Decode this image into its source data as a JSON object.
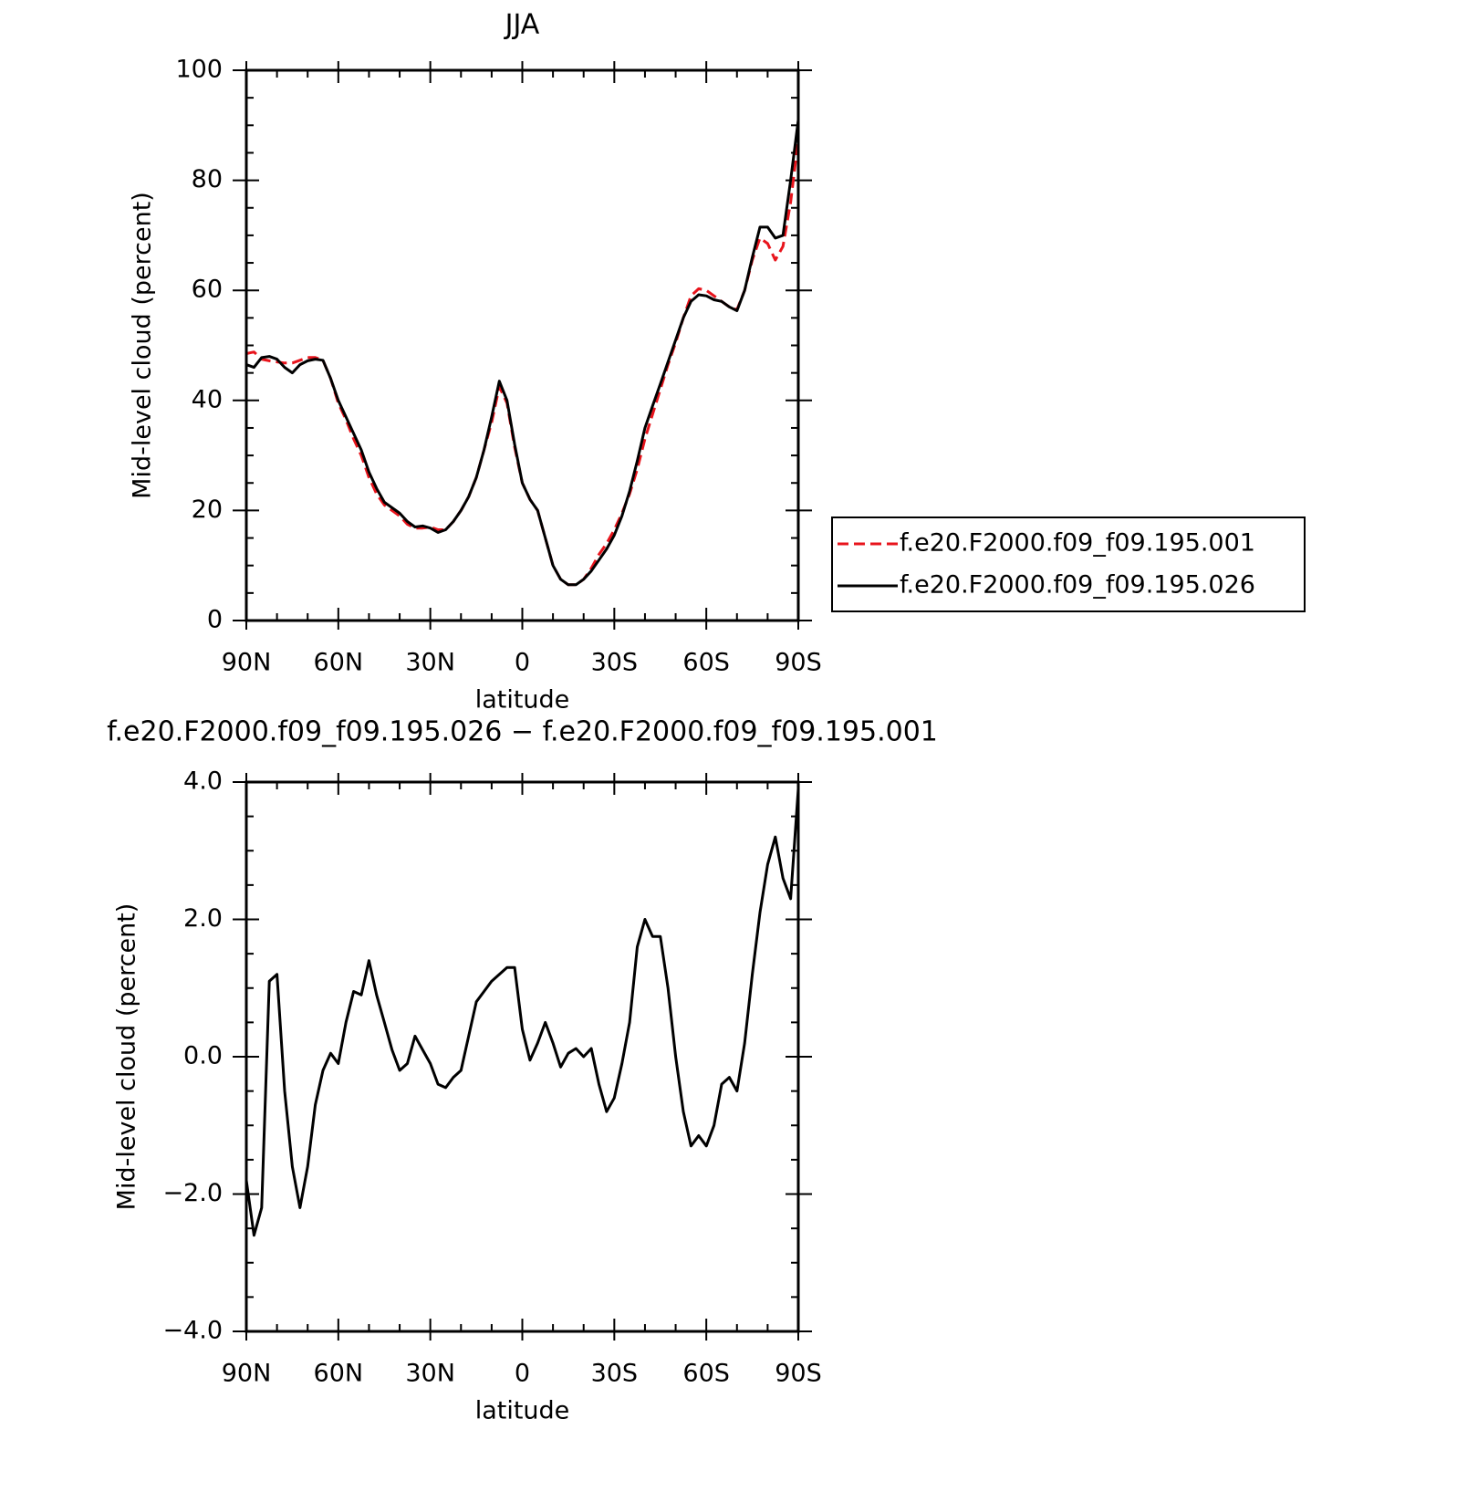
{
  "chart_data": [
    {
      "type": "line",
      "title": "JJA",
      "xlabel": "latitude",
      "ylabel": "Mid-level cloud (percent)",
      "x": [
        90,
        87.5,
        85,
        82.5,
        80,
        77.5,
        75,
        72.5,
        70,
        67.5,
        65,
        62.5,
        60,
        57.5,
        55,
        52.5,
        50,
        47.5,
        45,
        42.5,
        40,
        37.5,
        35,
        32.5,
        30,
        27.5,
        25,
        22.5,
        20,
        17.5,
        15,
        12.5,
        10,
        7.5,
        5,
        2.5,
        0,
        -2.5,
        -5,
        -7.5,
        -10,
        -12.5,
        -15,
        -17.5,
        -20,
        -22.5,
        -25,
        -27.5,
        -30,
        -32.5,
        -35,
        -37.5,
        -40,
        -42.5,
        -45,
        -47.5,
        -50,
        -52.5,
        -55,
        -57.5,
        -60,
        -62.5,
        -65,
        -67.5,
        -70,
        -72.5,
        -75,
        -77.5,
        -80,
        -82.5,
        -85,
        -87.5,
        -90
      ],
      "series": [
        {
          "name": "f.e20.F2000.f09_f09.195.001",
          "color": "#e8141c",
          "dashed": true,
          "values": [
            48.5,
            48.8,
            47.5,
            47.2,
            47,
            46.8,
            46.8,
            47.3,
            47.8,
            47.8,
            47.3,
            44,
            39.5,
            36.5,
            33,
            30,
            26,
            23,
            21,
            20,
            19,
            17.5,
            16.8,
            16.8,
            17,
            16.5,
            16.5,
            18,
            20,
            22.5,
            26,
            31,
            36,
            42.5,
            39.5,
            31.5,
            25,
            22,
            20,
            15,
            10,
            7.5,
            6.5,
            6.5,
            7.5,
            9.5,
            12,
            14,
            16.5,
            19.5,
            23,
            27.5,
            33,
            37.5,
            42,
            46.5,
            50.5,
            55,
            59,
            60.3,
            60,
            59,
            58,
            57,
            56.5,
            60,
            65.5,
            69.5,
            68.5,
            65.5,
            68,
            76,
            87.5
          ]
        },
        {
          "name": "f.e20.F2000.f09_f09.195.026",
          "color": "#000000",
          "dashed": false,
          "values": [
            46.5,
            46,
            47.8,
            48,
            47.5,
            46,
            45,
            46.5,
            47.2,
            47.5,
            47.3,
            44,
            40,
            37,
            34,
            31,
            27,
            24,
            21.5,
            20.5,
            19.5,
            18,
            17,
            17.2,
            16.8,
            16,
            16.5,
            18,
            20,
            22.5,
            26,
            31,
            37,
            43.5,
            40,
            32,
            25,
            22,
            20,
            15,
            10,
            7.5,
            6.5,
            6.5,
            7.5,
            9,
            11,
            13,
            15.5,
            19,
            23.5,
            29,
            35,
            39,
            43,
            47,
            51,
            55,
            58,
            59.2,
            59,
            58.3,
            58,
            57,
            56.3,
            60,
            66,
            71.5,
            71.5,
            69.5,
            70,
            80,
            91
          ]
        }
      ],
      "xlim": [
        90,
        -90
      ],
      "ylim": [
        0,
        100
      ],
      "xticks": [
        {
          "value": 90,
          "label": "90N"
        },
        {
          "value": 60,
          "label": "60N"
        },
        {
          "value": 30,
          "label": "30N"
        },
        0,
        {
          "value": -30,
          "label": "30S"
        },
        {
          "value": -60,
          "label": "60S"
        },
        {
          "value": -90,
          "label": "90S"
        }
      ],
      "yticks": [
        0,
        20,
        40,
        60,
        80,
        100
      ]
    },
    {
      "type": "line",
      "title": "f.e20.F2000.f09_f09.195.026 − f.e20.F2000.f09_f09.195.001",
      "xlabel": "latitude",
      "ylabel": "Mid-level cloud (percent)",
      "x": [
        90,
        87.5,
        85,
        82.5,
        80,
        77.5,
        75,
        72.5,
        70,
        67.5,
        65,
        62.5,
        60,
        57.5,
        55,
        52.5,
        50,
        47.5,
        45,
        42.5,
        40,
        37.5,
        35,
        32.5,
        30,
        27.5,
        25,
        22.5,
        20,
        17.5,
        15,
        12.5,
        10,
        7.5,
        5,
        2.5,
        0,
        -2.5,
        -5,
        -7.5,
        -10,
        -12.5,
        -15,
        -17.5,
        -20,
        -22.5,
        -25,
        -27.5,
        -30,
        -32.5,
        -35,
        -37.5,
        -40,
        -42.5,
        -45,
        -47.5,
        -50,
        -52.5,
        -55,
        -57.5,
        -60,
        -62.5,
        -65,
        -67.5,
        -70,
        -72.5,
        -75,
        -77.5,
        -80,
        -82.5,
        -85,
        -87.5,
        -90
      ],
      "series": [
        {
          "color": "#000000",
          "dashed": false,
          "values": [
            -1.8,
            -2.6,
            -2.2,
            1.1,
            1.2,
            -0.5,
            -1.6,
            -2.2,
            -1.6,
            -0.7,
            -0.2,
            0.05,
            -0.1,
            0.5,
            0.95,
            0.9,
            1.4,
            0.9,
            0.5,
            0.1,
            -0.2,
            -0.1,
            0.3,
            0.1,
            -0.1,
            -0.4,
            -0.45,
            -0.3,
            -0.2,
            0.3,
            0.8,
            0.95,
            1.1,
            1.2,
            1.3,
            1.3,
            0.4,
            -0.05,
            0.2,
            0.5,
            0.2,
            -0.15,
            0.05,
            0.12,
            0,
            0.12,
            -0.4,
            -0.8,
            -0.6,
            -0.1,
            0.5,
            1.6,
            2,
            1.75,
            1.75,
            1,
            0,
            -0.8,
            -1.3,
            -1.15,
            -1.3,
            -1,
            -0.4,
            -0.3,
            -0.5,
            0.2,
            1.2,
            2.1,
            2.8,
            3.2,
            2.6,
            2.3,
            3.9
          ]
        }
      ],
      "xlim": [
        90,
        -90
      ],
      "ylim": [
        -4,
        4
      ],
      "xticks": [
        {
          "value": 90,
          "label": "90N"
        },
        {
          "value": 60,
          "label": "60N"
        },
        {
          "value": 30,
          "label": "30N"
        },
        0,
        {
          "value": -30,
          "label": "30S"
        },
        {
          "value": -60,
          "label": "60S"
        },
        {
          "value": -90,
          "label": "90S"
        }
      ],
      "yticks": [
        {
          "value": -4,
          "label": "−4.0"
        },
        {
          "value": -2,
          "label": "−2.0"
        },
        {
          "value": 0,
          "label": "0.0"
        },
        {
          "value": 2,
          "label": "2.0"
        },
        {
          "value": 4,
          "label": "4.0"
        }
      ]
    }
  ]
}
